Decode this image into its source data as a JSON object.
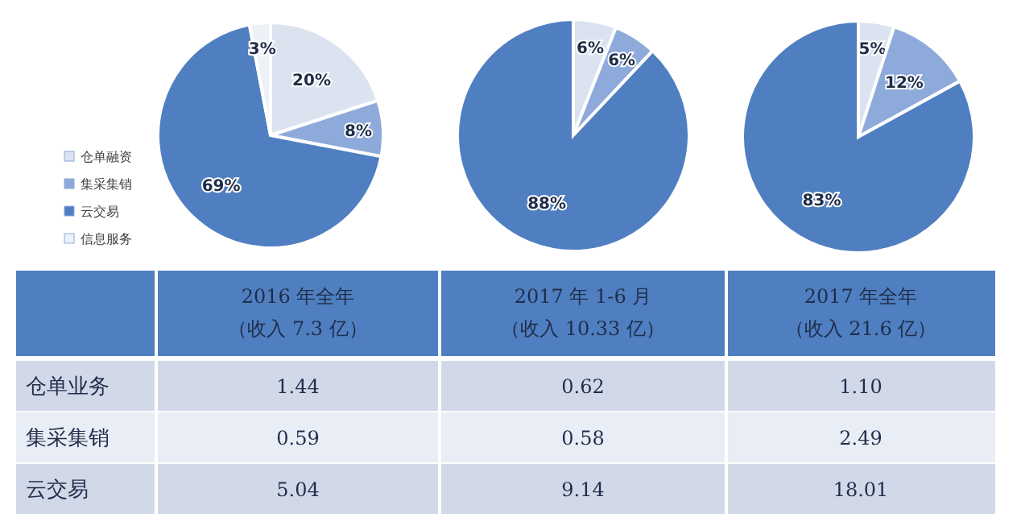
{
  "chart_data": [
    {
      "type": "pie",
      "categories": [
        "仓单融资",
        "集采集销",
        "云交易",
        "信息服务"
      ],
      "values": [
        20,
        8,
        69,
        3
      ],
      "value_labels": [
        "20%",
        "8%",
        "69%",
        "3%"
      ],
      "colors": [
        "#dbe3f1",
        "#8eaadb",
        "#4f7fc0",
        "#edf1f8"
      ],
      "legend": "left"
    },
    {
      "type": "pie",
      "categories": [
        null,
        null,
        null
      ],
      "values": [
        6,
        6,
        88
      ],
      "value_labels": [
        "6%",
        "6%",
        "88%"
      ],
      "colors": [
        "#dbe3f1",
        "#8eaadb",
        "#4f7fc0"
      ]
    },
    {
      "type": "pie",
      "categories": [
        null,
        null,
        null
      ],
      "values": [
        5,
        12,
        83
      ],
      "value_labels": [
        "5%",
        "12%",
        "83%"
      ],
      "colors": [
        "#dbe3f1",
        "#8eaadb",
        "#4f7fc0"
      ]
    },
    {
      "type": "other",
      "categories": [
        "2016 年全年（收入 7.3 亿）",
        "2017 年 1-6 月（收入 10.33 亿）",
        "2017 年全年（收入 21.6 亿）"
      ],
      "y_categories": [
        "仓单业务",
        "集采集销",
        "云交易"
      ],
      "cell_labels": [
        [
          "1.44",
          "0.62",
          "1.10"
        ],
        [
          "0.59",
          "0.58",
          "2.49"
        ],
        [
          "5.04",
          "9.14",
          "18.01"
        ]
      ]
    }
  ]
}
